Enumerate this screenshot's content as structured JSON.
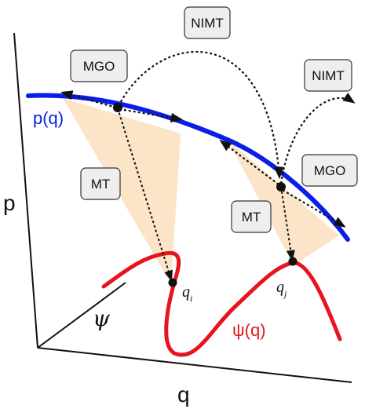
{
  "axes": {
    "p_label": "p",
    "q_label": "q",
    "psi_label": "ψ"
  },
  "curves": {
    "p_curve_label": "p(q)",
    "psi_curve_label": "ψ(q)",
    "p_color": "#0a1ee6",
    "psi_color": "#e6141e"
  },
  "boxes": {
    "nimt_top": "NIMT",
    "nimt_right": "NIMT",
    "mgo_left": "MGO",
    "mgo_right": "MGO",
    "mt_left": "MT",
    "mt_right": "MT"
  },
  "points": {
    "qi_base": "q",
    "qi_sub": "i",
    "qj_base": "q",
    "qj_sub": "j"
  },
  "colors": {
    "cone_fill": "#fbe3c4",
    "box_fill": "#eeeeee",
    "arrow": "#111111"
  }
}
